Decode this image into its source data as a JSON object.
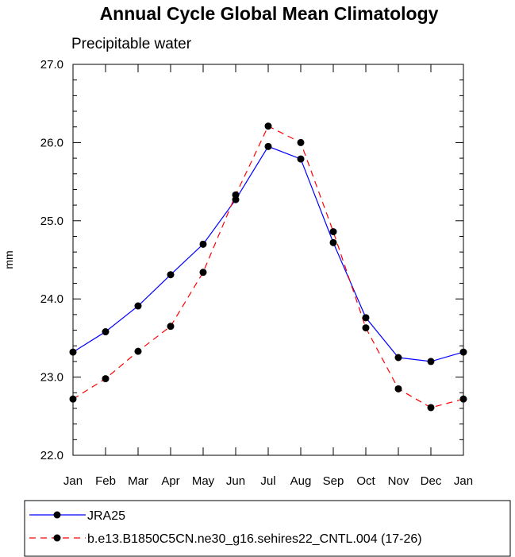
{
  "chart_data": {
    "type": "line",
    "title": "Annual Cycle Global Mean Climatology",
    "subtitle": "Precipitable water",
    "xlabel": "",
    "ylabel": "mm",
    "categories": [
      "Jan",
      "Feb",
      "Mar",
      "Apr",
      "May",
      "Jun",
      "Jul",
      "Aug",
      "Sep",
      "Oct",
      "Nov",
      "Dec",
      "Jan"
    ],
    "ylim": [
      22.0,
      27.0
    ],
    "yticks": [
      "22.0",
      "23.0",
      "24.0",
      "25.0",
      "26.0",
      "27.0"
    ],
    "grid": false,
    "legend_position": "bottom",
    "series": [
      {
        "name": "JRA25",
        "color": "#0000ff",
        "dash": "solid",
        "values": [
          23.32,
          23.58,
          23.91,
          24.31,
          24.7,
          25.27,
          25.95,
          25.79,
          24.72,
          23.76,
          23.25,
          23.2,
          23.32
        ]
      },
      {
        "name": "b.e13.B1850C5CN.ne30_g16.sehires22_CNTL.004 (17-26)",
        "color": "#ff0000",
        "dash": "dashed",
        "values": [
          22.72,
          22.98,
          23.33,
          23.65,
          24.34,
          25.33,
          26.21,
          26.0,
          24.86,
          23.63,
          22.85,
          22.61,
          22.72
        ]
      }
    ]
  }
}
